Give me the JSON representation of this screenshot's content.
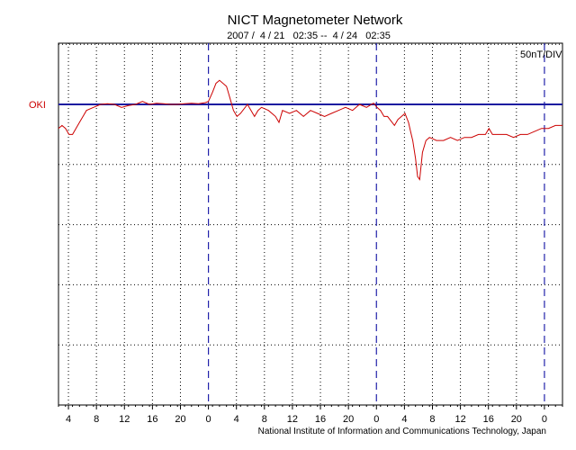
{
  "chart_data": {
    "type": "line",
    "title": "NICT Magnetometer Network",
    "subtitle": "2007 /  4 / 21   02:35 --  4 / 24   02:35",
    "scale_label": "50nT/DIV",
    "station_label": "OKI",
    "credit": "National Institute of Information and Communications Technology, Japan",
    "x_tick_labels": [
      "4",
      "8",
      "12",
      "16",
      "20",
      "0",
      "4",
      "8",
      "12",
      "16",
      "20",
      "0",
      "4",
      "8",
      "12",
      "16",
      "20",
      "0"
    ],
    "x_tick_hours": [
      1.42,
      5.42,
      9.42,
      13.42,
      17.42,
      21.42,
      25.42,
      29.42,
      33.42,
      37.42,
      41.42,
      45.42,
      49.42,
      53.42,
      57.42,
      61.42,
      65.42,
      69.42
    ],
    "day_boundaries_hours": [
      21.42,
      45.42,
      69.42
    ],
    "xlim_hours": [
      0,
      72
    ],
    "ylim_divisions": [
      -5,
      1
    ],
    "grid": true,
    "series": [
      {
        "color": "#cc0000",
        "x_hours": [
          0,
          0.5,
          1,
          1.5,
          2,
          2.5,
          3,
          3.5,
          4,
          5,
          6,
          7,
          8,
          9,
          10,
          11,
          12,
          13,
          14,
          15,
          16,
          17,
          18,
          19,
          20,
          21,
          21.42,
          22,
          22.5,
          23,
          24,
          24.5,
          25,
          25.5,
          26,
          27,
          27.5,
          28,
          28.5,
          29,
          30,
          31,
          31.5,
          32,
          33,
          34,
          35,
          36,
          37,
          38,
          39,
          40,
          41,
          42,
          43,
          44,
          45,
          45.5,
          46,
          46.5,
          47,
          48,
          48.5,
          49,
          49.5,
          50,
          50.3,
          50.6,
          51,
          51.3,
          51.6,
          52,
          52.5,
          53,
          54,
          55,
          56,
          57,
          58,
          59,
          60,
          61,
          61.5,
          62,
          63,
          64,
          65,
          66,
          67,
          68,
          69,
          70,
          71,
          72
        ],
        "values_div": [
          -0.4,
          -0.35,
          -0.4,
          -0.5,
          -0.5,
          -0.4,
          -0.3,
          -0.2,
          -0.1,
          -0.05,
          0,
          0.01,
          0,
          -0.05,
          -0.02,
          0,
          0.05,
          0,
          0.02,
          0.01,
          0,
          0,
          0.01,
          0.02,
          0.01,
          0.03,
          0.05,
          0.2,
          0.35,
          0.4,
          0.3,
          0.1,
          -0.1,
          -0.2,
          -0.15,
          0,
          -0.1,
          -0.2,
          -0.1,
          -0.05,
          -0.1,
          -0.2,
          -0.3,
          -0.1,
          -0.15,
          -0.1,
          -0.2,
          -0.1,
          -0.15,
          -0.2,
          -0.15,
          -0.1,
          -0.05,
          -0.1,
          0,
          -0.05,
          0.02,
          -0.05,
          -0.1,
          -0.2,
          -0.2,
          -0.35,
          -0.25,
          -0.2,
          -0.15,
          -0.3,
          -0.45,
          -0.6,
          -0.9,
          -1.2,
          -1.25,
          -0.8,
          -0.6,
          -0.55,
          -0.6,
          -0.6,
          -0.55,
          -0.6,
          -0.55,
          -0.55,
          -0.5,
          -0.5,
          -0.4,
          -0.5,
          -0.5,
          -0.5,
          -0.55,
          -0.5,
          -0.5,
          -0.45,
          -0.4,
          -0.4,
          -0.35,
          -0.35
        ]
      }
    ]
  }
}
